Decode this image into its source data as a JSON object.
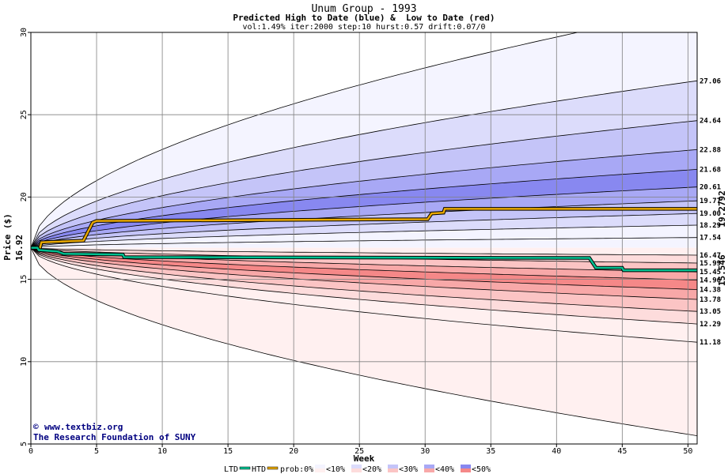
{
  "chart_data": {
    "type": "area",
    "title": "Unum Group - 1993",
    "subtitle": "Predicted High to Date (blue) &  Low to Date (red)",
    "params": "vol:1.49% iter:2000 step:10 hurst:0.57 drift:0.07/0",
    "xlabel": "Week",
    "ylabel": "Price ($)",
    "xlim": [
      0,
      50.7
    ],
    "ylim": [
      5,
      30
    ],
    "x_ticks": [
      0,
      5,
      10,
      15,
      20,
      25,
      30,
      35,
      40,
      45,
      50
    ],
    "y_ticks": [
      5,
      10,
      15,
      20,
      25,
      30
    ],
    "grid": true,
    "start_price": "16.92",
    "last_high": "19.2792",
    "last_low": "15.546",
    "right_labels": [
      "27.06",
      "24.64",
      "22.88",
      "21.68",
      "20.61",
      "19.77",
      "19.00",
      "18.29",
      "17.54",
      "16.47",
      "15.99",
      "15.45",
      "14.96",
      "14.38",
      "13.78",
      "13.05",
      "12.29",
      "11.18"
    ],
    "bands_high": [
      {
        "prob": "<10%",
        "upper": 31.5,
        "lower": 24.64,
        "color": "#f4f4ff"
      },
      {
        "prob": "<20%",
        "upper": 27.06,
        "lower": 22.88,
        "color": "#dcdcfb"
      },
      {
        "prob": "<30%",
        "upper": 24.64,
        "lower": 21.68,
        "color": "#c4c4f8"
      },
      {
        "prob": "<40%",
        "upper": 22.88,
        "lower": 20.61,
        "color": "#a8a8f5"
      },
      {
        "prob": "<50%",
        "upper": 21.68,
        "lower": 19.77,
        "color": "#8888f0"
      },
      {
        "prob": "<40%",
        "upper": 20.61,
        "lower": 19.0,
        "color": "#a8a8f5"
      },
      {
        "prob": "<30%",
        "upper": 19.77,
        "lower": 18.29,
        "color": "#c4c4f8"
      },
      {
        "prob": "<20%",
        "upper": 19.0,
        "lower": 17.54,
        "color": "#dcdcfb"
      },
      {
        "prob": "<10%",
        "upper": 18.29,
        "lower": 16.92,
        "color": "#f4f4ff"
      }
    ],
    "bands_low": [
      {
        "prob": "<10%",
        "upper": 16.92,
        "lower": 15.99,
        "color": "#fff0f0"
      },
      {
        "prob": "<20%",
        "upper": 16.47,
        "lower": 15.45,
        "color": "#fddcdc"
      },
      {
        "prob": "<30%",
        "upper": 15.99,
        "lower": 14.96,
        "color": "#fbc4c4"
      },
      {
        "prob": "<40%",
        "upper": 15.45,
        "lower": 14.38,
        "color": "#f8a8a8"
      },
      {
        "prob": "<50%",
        "upper": 14.96,
        "lower": 13.78,
        "color": "#f58888"
      },
      {
        "prob": "<40%",
        "upper": 14.38,
        "lower": 13.05,
        "color": "#f8a8a8"
      },
      {
        "prob": "<30%",
        "upper": 13.78,
        "lower": 12.29,
        "color": "#fbc4c4"
      },
      {
        "prob": "<20%",
        "upper": 13.05,
        "lower": 11.18,
        "color": "#fddcdc"
      },
      {
        "prob": "<10%",
        "upper": 12.29,
        "lower": 5.5,
        "color": "#fff0f0"
      }
    ],
    "band_lines": [
      31.5,
      27.06,
      24.64,
      22.88,
      21.68,
      20.61,
      19.77,
      19.0,
      18.29,
      17.54,
      16.47,
      15.99,
      15.45,
      14.96,
      14.38,
      13.78,
      13.05,
      12.29,
      11.18,
      5.5
    ],
    "series": [
      {
        "name": "HTD",
        "color": "#e8a800",
        "x": [
          0,
          0.7,
          0.8,
          4.0,
          4.7,
          5.0,
          30.2,
          30.5,
          31.4,
          31.5,
          50.7
        ],
        "y": [
          16.92,
          16.92,
          17.25,
          17.35,
          18.45,
          18.55,
          18.65,
          19.0,
          19.05,
          19.28,
          19.28
        ]
      },
      {
        "name": "LTD",
        "color": "#00c090",
        "x": [
          0,
          0.5,
          0.6,
          2.0,
          2.5,
          7.0,
          7.1,
          42.5,
          43.0,
          45.0,
          45.1,
          50.7
        ],
        "y": [
          16.92,
          16.92,
          16.78,
          16.7,
          16.55,
          16.5,
          16.35,
          16.3,
          15.7,
          15.7,
          15.55,
          15.55
        ]
      }
    ]
  },
  "credit": {
    "site": "www.textbiz.org",
    "org": "The Research Foundation of SUNY",
    "copyright_symbol": "©"
  },
  "legend": {
    "ltd_label": "LTD",
    "htd_label": "HTD",
    "prob_label": "prob:0%",
    "items": [
      "<10%",
      "<20%",
      "<30%",
      "<40%",
      "<50%"
    ],
    "ltd_color": "#00c090",
    "htd_color": "#e8a800",
    "blue_colors": [
      "#f4f4ff",
      "#dcdcfb",
      "#c4c4f8",
      "#a8a8f5",
      "#8888f0"
    ],
    "red_colors": [
      "#fff0f0",
      "#fddcdc",
      "#fbc4c4",
      "#f8a8a8",
      "#f58888"
    ]
  }
}
